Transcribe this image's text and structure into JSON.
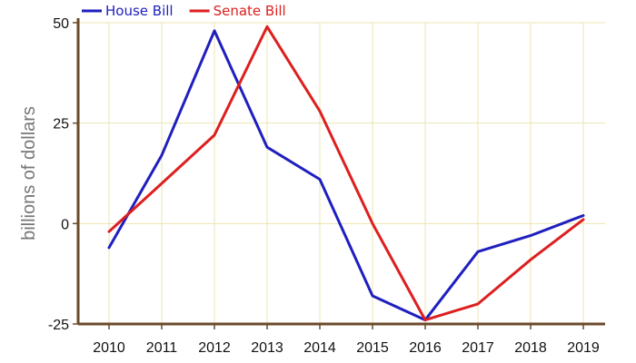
{
  "chart_data": {
    "type": "line",
    "title": "",
    "xlabel": "",
    "ylabel": "billions of dollars",
    "categories": [
      "2010",
      "2011",
      "2012",
      "2013",
      "2014",
      "2015",
      "2016",
      "2017",
      "2018",
      "2019"
    ],
    "ylim": [
      -25,
      50
    ],
    "yticks": [
      "-25",
      "0",
      "25",
      "50"
    ],
    "grid": true,
    "legend_position": "top-left",
    "series": [
      {
        "name": "House Bill",
        "color": "#1f1fbf",
        "values": [
          -6,
          17,
          48,
          19,
          11,
          -18,
          -24,
          -7,
          -3,
          2
        ]
      },
      {
        "name": "Senate Bill",
        "color": "#dd1f1f",
        "values": [
          -2,
          10,
          22,
          49,
          28,
          0,
          -24,
          -20,
          -9,
          1
        ]
      }
    ],
    "colors": {
      "axis": "#6b4a2a",
      "grid": "#ece5b0"
    }
  }
}
